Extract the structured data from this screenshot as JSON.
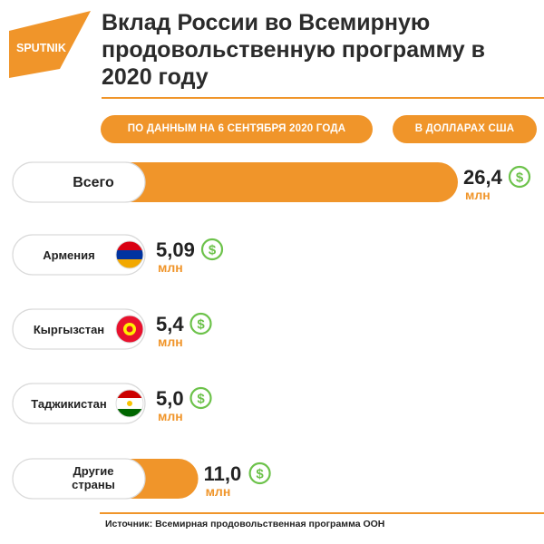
{
  "brand": {
    "name": "SPUTNIK"
  },
  "header": {
    "title": "Вклад России во Всемирную продовольственную программу в 2020 году",
    "date_note": "ПО ДАННЫМ НА 6 СЕНТЯБРЯ 2020 ГОДА",
    "unit_note": "В ДОЛЛАРАХ США"
  },
  "footer": {
    "source": "Источник: Всемирная продовольственная программа ООН"
  },
  "colors": {
    "accent": "#f0952a",
    "dollar": "#6cc24a",
    "text": "#222222"
  },
  "chart_data": {
    "type": "bar",
    "orientation": "horizontal",
    "categories": [
      "Всего",
      "Армения",
      "Кыргызстан",
      "Таджикистан",
      "Другие страны"
    ],
    "value_labels": [
      "26,4",
      "5,09",
      "5,4",
      "5,0",
      "11,0"
    ],
    "values": [
      26.4,
      5.09,
      5.4,
      5.0,
      11.0
    ],
    "unit": "млн",
    "currency_icon": "dollar-circle-icon",
    "flags": [
      null,
      "armenia-flag-icon",
      "kyrgyzstan-flag-icon",
      "tajikistan-flag-icon",
      null
    ]
  }
}
